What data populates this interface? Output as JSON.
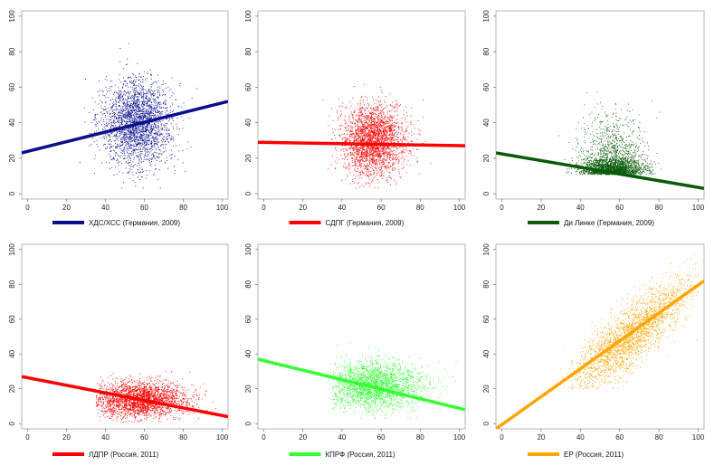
{
  "chart_data": [
    {
      "type": "scatter",
      "legend_label": "ХДС/ХСС (Германия, 2009)",
      "color": "#0a0f8c",
      "x_ticks": [
        0,
        20,
        40,
        60,
        80,
        100
      ],
      "y_ticks": [
        0,
        20,
        40,
        60,
        80,
        100
      ],
      "xlim": [
        -3,
        103
      ],
      "ylim": [
        -3,
        103
      ],
      "cloud": {
        "x_center": 56,
        "x_spread": 9,
        "y_center": 40,
        "y_spread": 12,
        "x_min": 18,
        "x_max": 95,
        "y_min": 3,
        "y_max": 85
      },
      "trend_line": {
        "x": [
          -3,
          103
        ],
        "y": [
          23,
          52
        ]
      },
      "legend_position": "bottom"
    },
    {
      "type": "scatter",
      "legend_label": "СДПГ (Германия, 2009)",
      "color": "#ff0000",
      "x_ticks": [
        0,
        20,
        40,
        60,
        80,
        100
      ],
      "y_ticks": [
        0,
        20,
        40,
        60,
        80,
        100
      ],
      "xlim": [
        -3,
        103
      ],
      "ylim": [
        -3,
        103
      ],
      "cloud": {
        "x_center": 56,
        "x_spread": 8,
        "y_center": 30,
        "y_spread": 10,
        "x_min": 25,
        "x_max": 95,
        "y_min": 3,
        "y_max": 70
      },
      "trend_line": {
        "x": [
          -3,
          103
        ],
        "y": [
          29,
          27
        ]
      },
      "legend_position": "bottom"
    },
    {
      "type": "scatter",
      "legend_label": "Ди Линке (Германия, 2009)",
      "color": "#0a5a0a",
      "x_ticks": [
        0,
        20,
        40,
        60,
        80,
        100
      ],
      "y_ticks": [
        0,
        20,
        40,
        60,
        80,
        100
      ],
      "xlim": [
        -3,
        103
      ],
      "ylim": [
        -3,
        103
      ],
      "cloud": {
        "x_center": 56,
        "x_spread": 8,
        "y_center": 11,
        "y_spread": 9,
        "x_min": 28,
        "x_max": 92,
        "y_min": 1,
        "y_max": 60
      },
      "trend_line": {
        "x": [
          -3,
          103
        ],
        "y": [
          23,
          3
        ]
      },
      "legend_position": "bottom"
    },
    {
      "type": "scatter",
      "legend_label": "ЛДПР (Россия, 2011)",
      "color": "#ff0000",
      "x_ticks": [
        0,
        20,
        40,
        60,
        80,
        100
      ],
      "y_ticks": [
        0,
        20,
        40,
        60,
        80,
        100
      ],
      "xlim": [
        -3,
        103
      ],
      "ylim": [
        -3,
        103
      ],
      "cloud": {
        "x_center": 58,
        "x_spread": 12,
        "y_center": 14,
        "y_spread": 5,
        "x_min": 35,
        "x_max": 100,
        "y_min": 1,
        "y_max": 45
      },
      "trend_line": {
        "x": [
          -3,
          103
        ],
        "y": [
          27,
          4
        ]
      },
      "legend_position": "bottom"
    },
    {
      "type": "scatter",
      "legend_label": "КПРФ (Россия, 2011)",
      "color": "#33ff33",
      "x_ticks": [
        0,
        20,
        40,
        60,
        80,
        100
      ],
      "y_ticks": [
        0,
        20,
        40,
        60,
        80,
        100
      ],
      "xlim": [
        -3,
        103
      ],
      "ylim": [
        -3,
        103
      ],
      "cloud": {
        "x_center": 56,
        "x_spread": 12,
        "y_center": 22,
        "y_spread": 7,
        "x_min": 35,
        "x_max": 100,
        "y_min": 1,
        "y_max": 55
      },
      "trend_line": {
        "x": [
          -3,
          103
        ],
        "y": [
          37,
          8
        ]
      },
      "legend_position": "bottom"
    },
    {
      "type": "scatter",
      "legend_label": "ЕР (Россия, 2011)",
      "color": "#ffa500",
      "x_ticks": [
        0,
        20,
        40,
        60,
        80,
        100
      ],
      "y_ticks": [
        0,
        20,
        40,
        60,
        80,
        100
      ],
      "xlim": [
        -3,
        103
      ],
      "ylim": [
        -3,
        103
      ],
      "cloud": {
        "x_center": 65,
        "x_spread": 15,
        "y_center": 50,
        "y_spread": 15,
        "x_min": 30,
        "x_max": 100,
        "y_min": 20,
        "y_max": 100
      },
      "trend_line": {
        "x": [
          -3,
          103
        ],
        "y": [
          -3,
          82
        ]
      },
      "legend_position": "bottom"
    }
  ]
}
